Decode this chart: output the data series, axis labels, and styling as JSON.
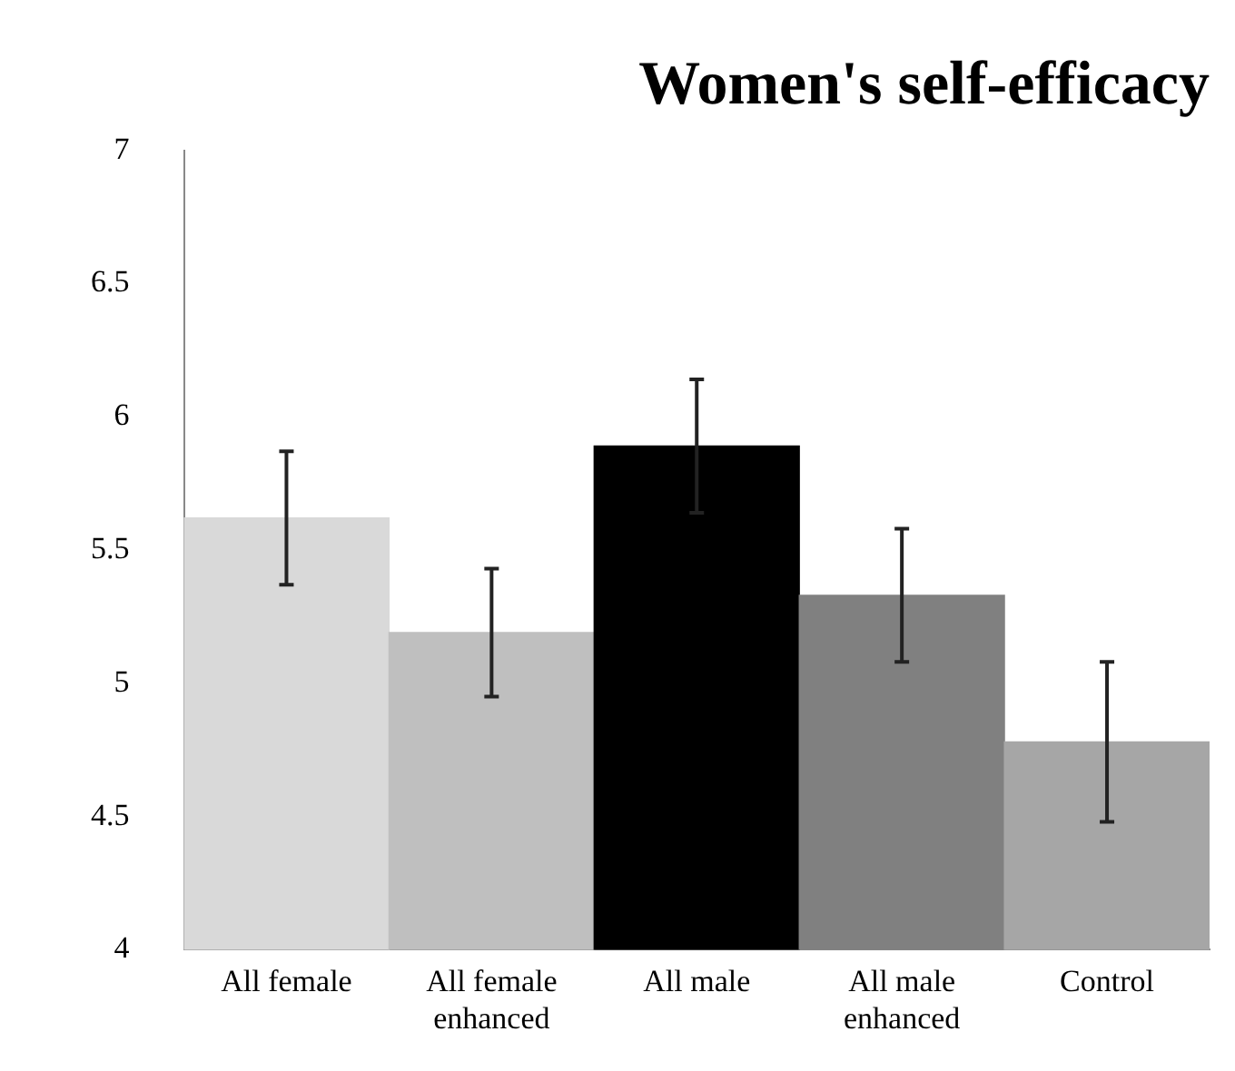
{
  "chart_data": {
    "type": "bar",
    "title": "Women's self-efficacy",
    "categories": [
      "All female",
      "All female enhanced",
      "All male",
      "All male enhanced",
      "Control"
    ],
    "values": [
      5.62,
      5.19,
      5.89,
      5.33,
      4.78
    ],
    "errors": [
      0.25,
      0.24,
      0.25,
      0.25,
      0.3
    ],
    "colors": [
      "#d9d9d9",
      "#bfbfbf",
      "#000000",
      "#808080",
      "#a6a6a6"
    ],
    "ylim": [
      4,
      7
    ],
    "yticks": [
      4,
      4.5,
      5,
      5.5,
      6,
      6.5,
      7
    ],
    "grid": false,
    "legend": false
  }
}
